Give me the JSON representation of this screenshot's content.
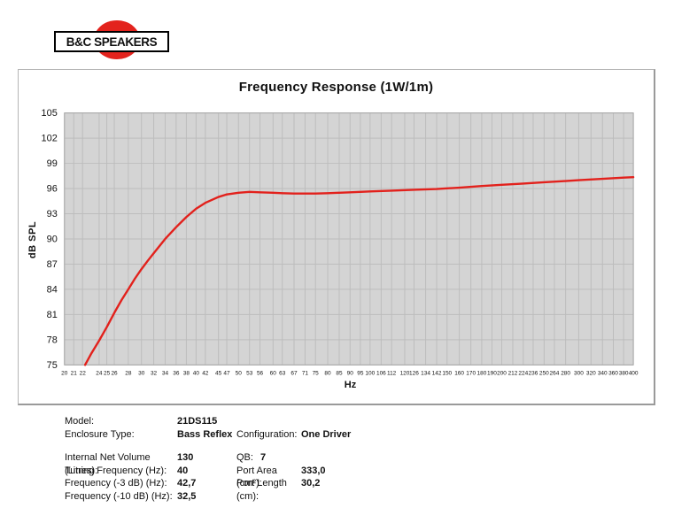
{
  "logo": {
    "text": "B&C SPEAKERS",
    "red": "#e3231d"
  },
  "chart_data": {
    "type": "line",
    "title": "Frequency Response (1W/1m)",
    "xlabel": "Hz",
    "ylabel": "dB SPL",
    "x_scale": "log",
    "xlim": [
      20,
      400
    ],
    "ylim": [
      75,
      105
    ],
    "grid": true,
    "legend": "none",
    "plot_bg": "#d4d4d4",
    "grid_color": "#bdbdbd",
    "border_color": "#a8a8a8",
    "line_color": "#e2211c",
    "y_ticks": [
      105,
      102,
      99,
      96,
      93,
      90,
      87,
      84,
      81,
      78,
      75
    ],
    "x_ticks": [
      20,
      21,
      22,
      24,
      25,
      26,
      28,
      30,
      32,
      34,
      36,
      38,
      40,
      42,
      45,
      47,
      50,
      53,
      56,
      60,
      63,
      67,
      71,
      75,
      80,
      85,
      90,
      95,
      100,
      106,
      112,
      120,
      126,
      134,
      142,
      150,
      160,
      170,
      180,
      190,
      200,
      212,
      224,
      236,
      250,
      264,
      280,
      300,
      320,
      340,
      360,
      380,
      400
    ],
    "series": [
      {
        "name": "SPL",
        "points": [
          [
            22.3,
            75.0
          ],
          [
            23,
            76.3
          ],
          [
            24,
            77.9
          ],
          [
            25,
            79.5
          ],
          [
            26,
            81.2
          ],
          [
            27,
            82.7
          ],
          [
            28,
            84.0
          ],
          [
            29,
            85.3
          ],
          [
            30,
            86.4
          ],
          [
            31,
            87.4
          ],
          [
            32,
            88.3
          ],
          [
            34,
            90.0
          ],
          [
            36,
            91.4
          ],
          [
            38,
            92.6
          ],
          [
            40,
            93.6
          ],
          [
            42,
            94.3
          ],
          [
            45,
            95.0
          ],
          [
            47,
            95.3
          ],
          [
            50,
            95.5
          ],
          [
            53,
            95.6
          ],
          [
            56,
            95.55
          ],
          [
            60,
            95.5
          ],
          [
            63,
            95.45
          ],
          [
            67,
            95.4
          ],
          [
            71,
            95.4
          ],
          [
            75,
            95.4
          ],
          [
            80,
            95.45
          ],
          [
            85,
            95.5
          ],
          [
            90,
            95.55
          ],
          [
            95,
            95.6
          ],
          [
            100,
            95.65
          ],
          [
            112,
            95.75
          ],
          [
            126,
            95.85
          ],
          [
            142,
            95.95
          ],
          [
            160,
            96.1
          ],
          [
            180,
            96.3
          ],
          [
            200,
            96.45
          ],
          [
            224,
            96.6
          ],
          [
            250,
            96.75
          ],
          [
            280,
            96.9
          ],
          [
            300,
            97.0
          ],
          [
            340,
            97.15
          ],
          [
            380,
            97.3
          ],
          [
            400,
            97.35
          ]
        ]
      }
    ]
  },
  "specs": {
    "rows": [
      {
        "l1": "Model:",
        "v1": "21DS115",
        "l2": "",
        "v2": ""
      },
      {
        "l1": "Enclosure Type:",
        "v1": "Bass Reflex",
        "l2": "Configuration:",
        "v2": "One Driver"
      },
      {
        "gap": true
      },
      {
        "l1": "Internal Net Volume (Litres):",
        "v1": "130",
        "l2": "QB:",
        "v2": "7"
      },
      {
        "l1": "Tuning Frequency (Hz):",
        "v1": "40",
        "l2": "Port Area (cm²):",
        "v2": "333,0"
      },
      {
        "l1": "Frequency (-3 dB) (Hz):",
        "v1": "42,7",
        "l2": "Port Length (cm):",
        "v2": "30,2"
      },
      {
        "l1": "Frequency (-10 dB) (Hz):",
        "v1": "32,5",
        "l2": "",
        "v2": ""
      }
    ]
  }
}
